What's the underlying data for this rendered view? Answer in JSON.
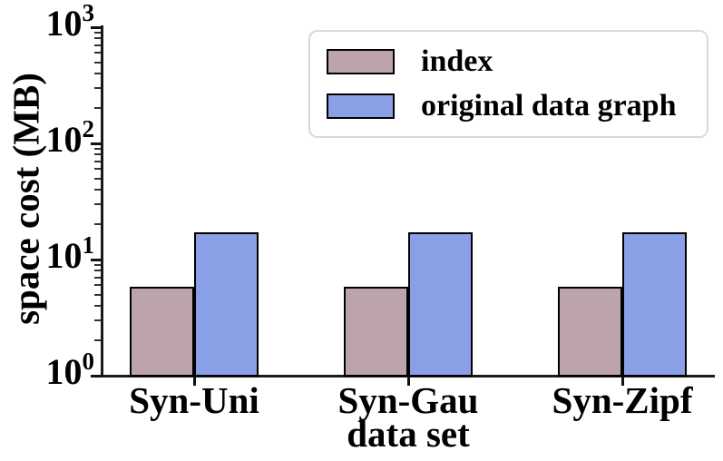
{
  "chart_data": {
    "type": "bar",
    "title": "",
    "xlabel": "data set",
    "ylabel": "space cost (MB)",
    "yscale": "log",
    "ylim": [
      1,
      1000
    ],
    "y_tick_base": "10",
    "y_tick_exponents": [
      0,
      1,
      2,
      3
    ],
    "grid": false,
    "legend_position": "upper right",
    "categories": [
      "Syn-Uni",
      "Syn-Gau",
      "Syn-Zipf"
    ],
    "series": [
      {
        "name": "index",
        "color": "#BDA3AB",
        "values": [
          5.8,
          5.8,
          5.8
        ]
      },
      {
        "name": "original data graph",
        "color": "#8AA0E6",
        "values": [
          17.3,
          17.3,
          17.3
        ]
      }
    ]
  }
}
